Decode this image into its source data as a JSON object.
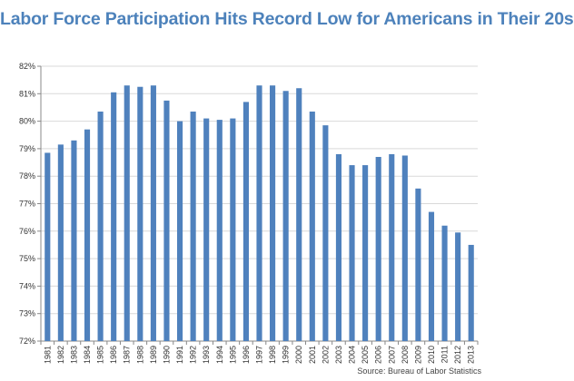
{
  "title": "Labor Force Participation Hits Record Low for Americans in Their 20s",
  "source": "Source: Bureau of Labor Statistics",
  "colors": {
    "bar": "#4f81bd",
    "title": "#4d82bb",
    "grid": "#d9d9d9",
    "axis": "#888888"
  },
  "chart_data": {
    "type": "bar",
    "title": "Labor Force Participation Hits Record Low for Americans in Their 20s",
    "xlabel": "",
    "ylabel": "",
    "ylim": [
      72,
      82
    ],
    "yticks": [
      "72%",
      "73%",
      "74%",
      "75%",
      "76%",
      "77%",
      "78%",
      "79%",
      "80%",
      "81%",
      "82%"
    ],
    "grid": true,
    "categories": [
      "1981",
      "1982",
      "1983",
      "1984",
      "1985",
      "1986",
      "1987",
      "1988",
      "1989",
      "1990",
      "1991",
      "1992",
      "1993",
      "1994",
      "1995",
      "1996",
      "1997",
      "1998",
      "1999",
      "2000",
      "2001",
      "2002",
      "2003",
      "2004",
      "2005",
      "2006",
      "2007",
      "2008",
      "2009",
      "2010",
      "2011",
      "2012",
      "2013"
    ],
    "values": [
      78.85,
      79.15,
      79.3,
      79.7,
      80.35,
      81.05,
      81.3,
      81.25,
      81.3,
      80.75,
      80.0,
      80.35,
      80.1,
      80.05,
      80.1,
      80.7,
      81.3,
      81.3,
      81.1,
      81.2,
      80.35,
      79.85,
      78.8,
      78.4,
      78.4,
      78.7,
      78.8,
      78.75,
      77.55,
      76.7,
      76.2,
      75.95,
      75.5
    ]
  }
}
